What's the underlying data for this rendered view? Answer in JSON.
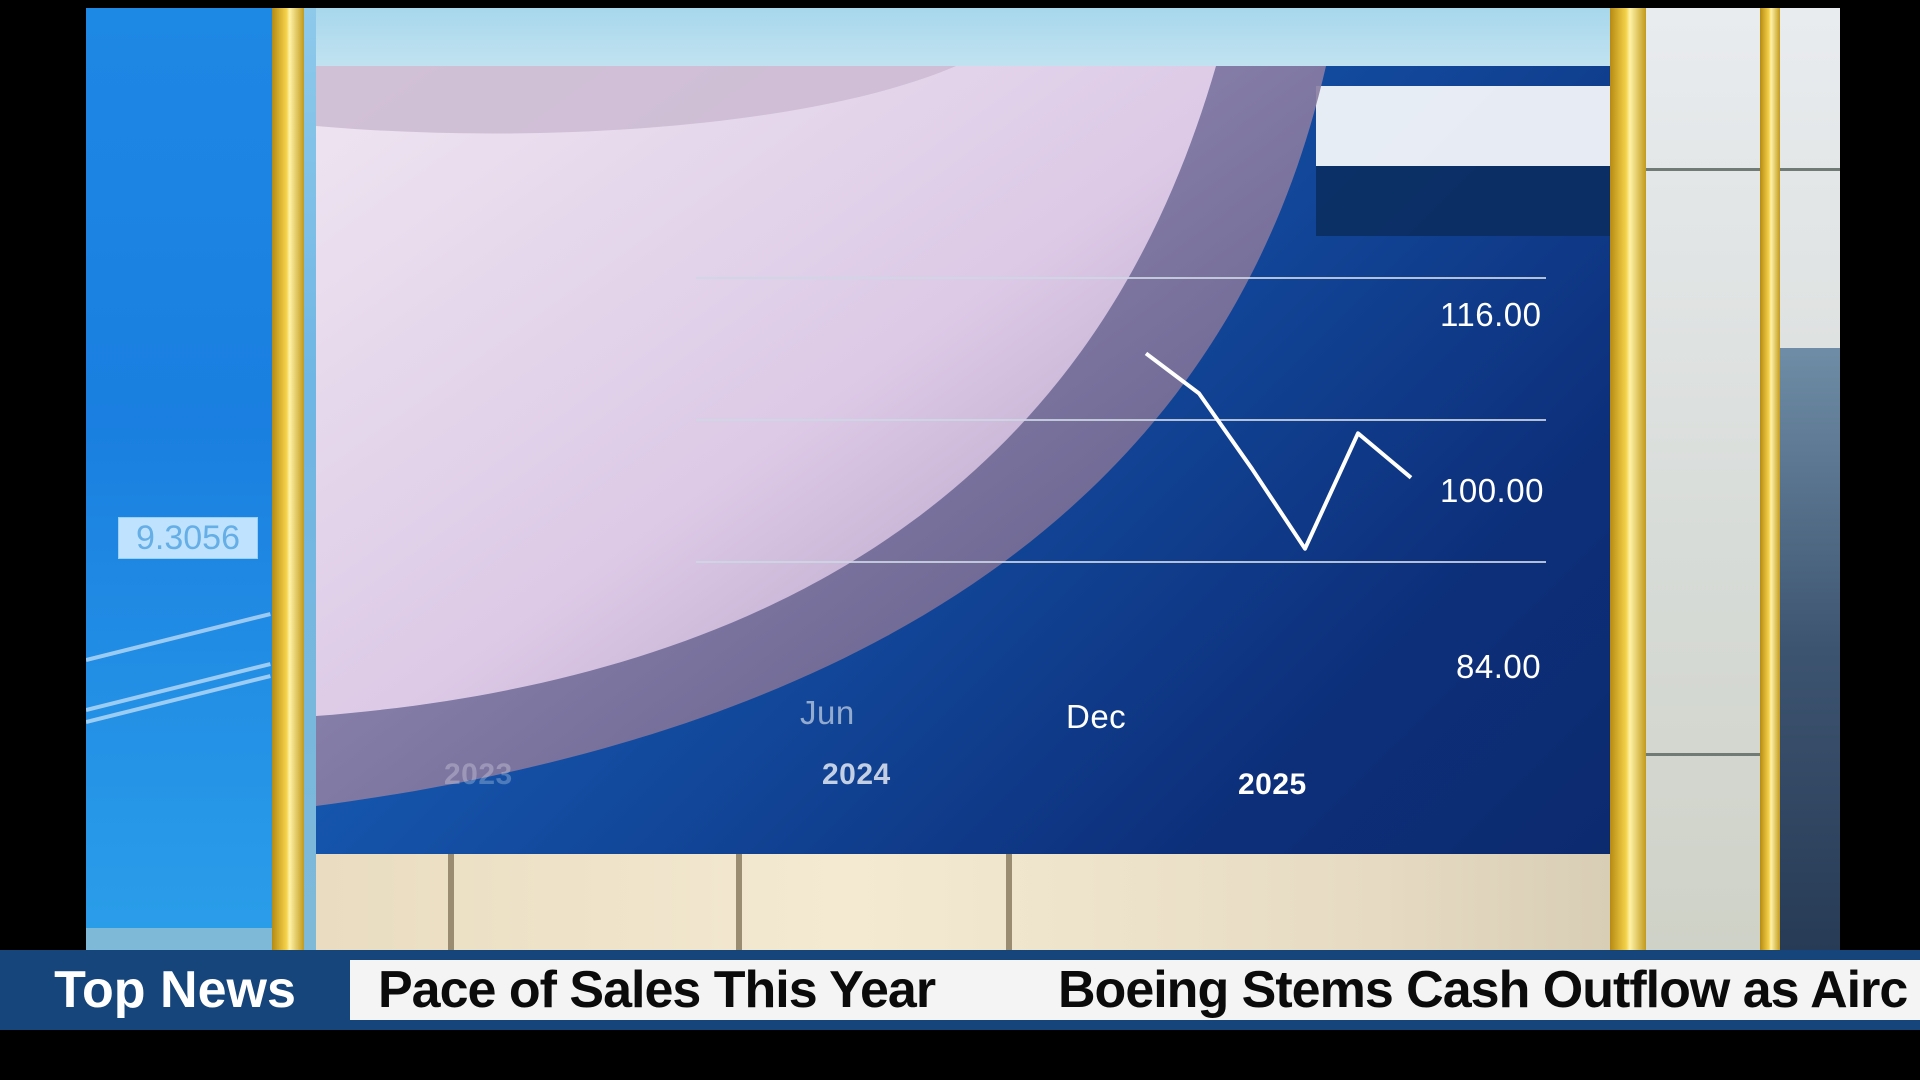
{
  "left_monitor": {
    "value": "9.3056"
  },
  "chart": {
    "y_ticks": [
      "116.00",
      "100.00",
      "84.00"
    ],
    "x_ticks": [
      "Jun",
      "Dec"
    ],
    "years": [
      "2024",
      "2025"
    ],
    "faint_year": "2023"
  },
  "chart_data": {
    "type": "line",
    "title": "",
    "xlabel": "",
    "ylabel": "",
    "ylim": [
      84,
      116
    ],
    "y_ticks": [
      116,
      100,
      84
    ],
    "x_tick_labels": [
      "Jun",
      "Dec"
    ],
    "year_labels": [
      "2024",
      "2025"
    ],
    "series": [
      {
        "x": [
          "2024-12",
          "2025-01",
          "2025-02",
          "2025-03",
          "2025-04",
          "2025-05"
        ],
        "values": [
          107.5,
          103.0,
          94.5,
          85.5,
          98.5,
          93.5
        ]
      }
    ],
    "grid": true,
    "line_color": "#ffffff"
  },
  "ticker": {
    "label": "Top News",
    "headlines": [
      "Pace of Sales  This Year",
      "Boeing Stems Cash Outflow  as Airc"
    ]
  },
  "colors": {
    "screen_blue": "#1452a8",
    "ticker_blue": "#15457a",
    "line": "#ffffff"
  }
}
